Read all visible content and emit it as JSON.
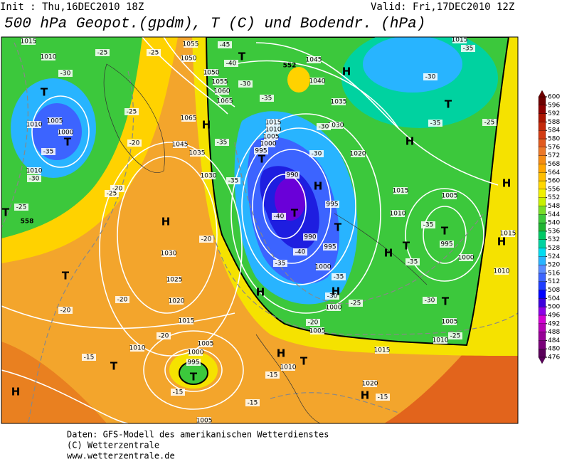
{
  "header": {
    "init": "Init : Thu,16DEC2010 18Z",
    "valid": "Valid: Fri,17DEC2010 12Z",
    "title": "500 hPa Geopot.(gpdm), T (C) und Bodendr. (hPa)"
  },
  "colorbar": {
    "levels": [
      476,
      480,
      484,
      488,
      492,
      496,
      500,
      504,
      508,
      512,
      516,
      520,
      524,
      528,
      532,
      536,
      540,
      544,
      548,
      552,
      556,
      560,
      564,
      568,
      572,
      576,
      580,
      584,
      588,
      592,
      596,
      600
    ],
    "colors": [
      "#5a005a",
      "#780078",
      "#960096",
      "#b400b4",
      "#d200d2",
      "#8c00e6",
      "#3c00dc",
      "#0000ff",
      "#1e3cff",
      "#3c64ff",
      "#5a8cff",
      "#28b4ff",
      "#00dcf0",
      "#00d2a0",
      "#00c864",
      "#1eb432",
      "#3cc83c",
      "#78dc28",
      "#c8f000",
      "#f0f000",
      "#ffd700",
      "#ffbe00",
      "#ffa500",
      "#f58c14",
      "#eb7828",
      "#e15a1e",
      "#d23c14",
      "#c3280a",
      "#aa1400",
      "#8c0000",
      "#6e0000"
    ]
  },
  "map": {
    "pressure": [
      1015,
      1010,
      1055,
      1050,
      1050,
      1055,
      1060,
      1065,
      1045,
      1040,
      1035,
      1065,
      1045,
      1035,
      1030,
      1015,
      1010,
      1005,
      1000,
      995,
      1030,
      1020,
      990,
      995,
      990,
      995,
      1000,
      1000,
      1005,
      1015,
      1010,
      1005,
      995,
      1000,
      1010,
      1015,
      1005,
      1010,
      1015,
      1005,
      1000,
      1010,
      1010,
      1030,
      1025,
      1020,
      1015,
      1010,
      1005,
      1000,
      995,
      1010,
      1020,
      1005,
      1015
    ],
    "temperature": [
      -25,
      -30,
      -25,
      -45,
      -40,
      -30,
      -35,
      -25,
      -20,
      -35,
      -30,
      -25,
      -20,
      -25,
      -35,
      -35,
      -40,
      -40,
      -35,
      -30,
      -30,
      -35,
      -30,
      -25,
      -20,
      -35,
      -30,
      -35,
      -25,
      -35,
      -35,
      -30,
      -25,
      -20,
      -20,
      -20,
      -20,
      -15,
      -15,
      -15,
      -15,
      -15
    ],
    "centers": [
      "T",
      "T",
      "T",
      "H",
      "T",
      "T",
      "H",
      "T",
      "H",
      "T",
      "H",
      "T",
      "H",
      "H",
      "T",
      "H",
      "T",
      "T",
      "H",
      "T",
      "H",
      "H",
      "T",
      "T",
      "H",
      "T",
      "H",
      "H"
    ],
    "geopotential": [
      552,
      558
    ]
  },
  "footer": {
    "lines": [
      "Daten: GFS-Modell des amerikanischen Wetterdienstes",
      "(C) Wetterzentrale",
      "www.wetterzentrale.de"
    ]
  }
}
